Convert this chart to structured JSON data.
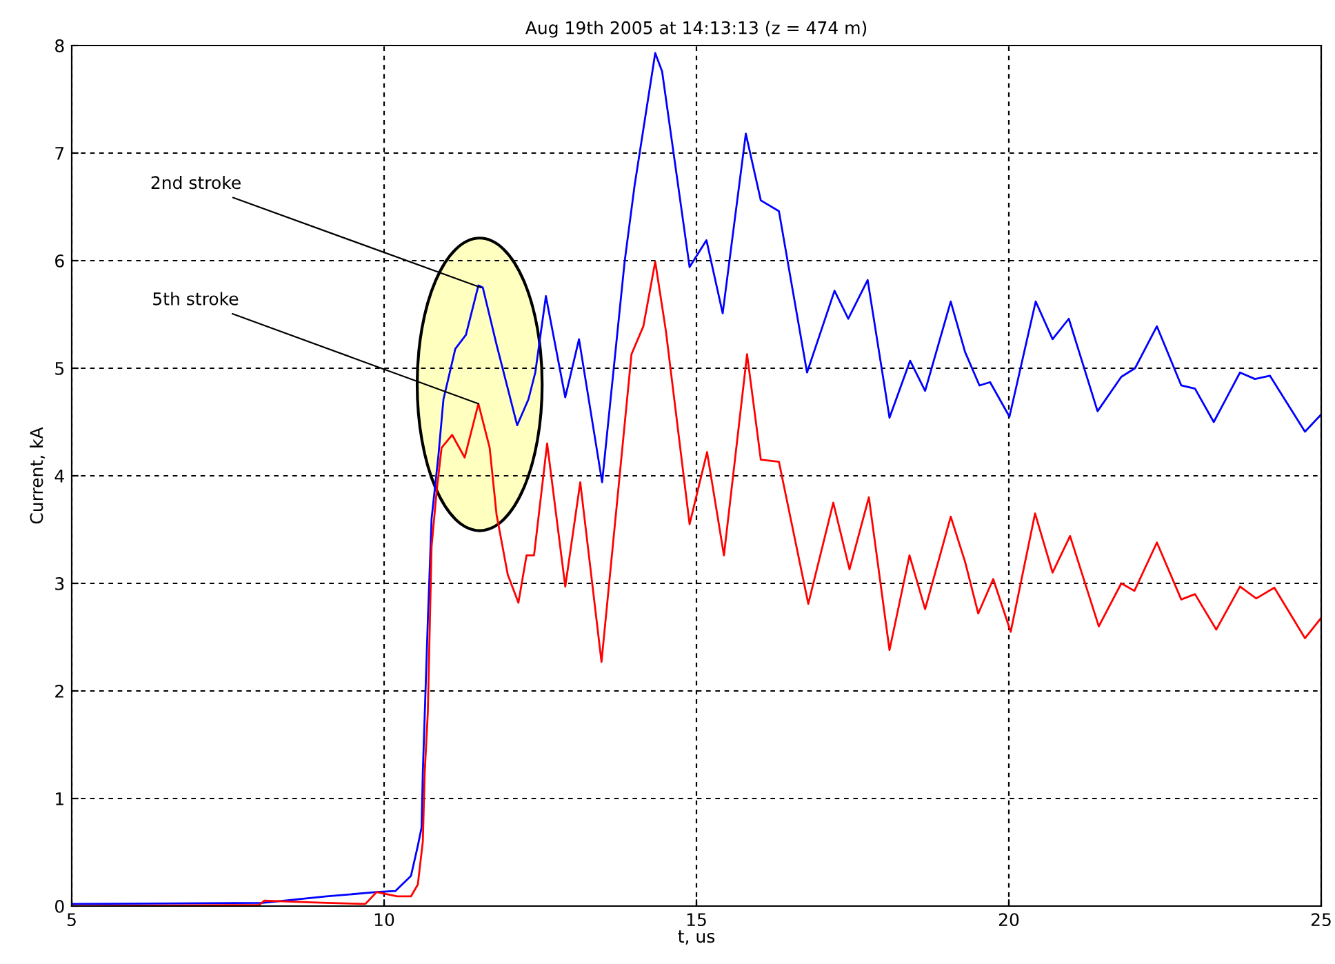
{
  "chart_data": {
    "type": "line",
    "title": "Aug 19th 2005 at 14:13:13 (z = 474 m)",
    "xlabel": "t, us",
    "ylabel": "Current, kA",
    "xlim": [
      5,
      25
    ],
    "xticks": [
      5,
      10,
      15,
      20,
      25
    ],
    "ylim": [
      0,
      8
    ],
    "yticks": [
      0,
      1,
      2,
      3,
      4,
      5,
      6,
      7,
      8
    ],
    "grid": true,
    "line_style": "solid",
    "series": [
      {
        "color": "#0000ff",
        "x": [
          5.0,
          8.05,
          9.08,
          9.88,
          10.18,
          10.43,
          10.54,
          10.6,
          10.62,
          10.7,
          10.76,
          10.87,
          10.95,
          11.14,
          11.31,
          11.51,
          11.58,
          11.8,
          12.13,
          12.31,
          12.42,
          12.59,
          12.9,
          13.12,
          13.49,
          13.85,
          14.01,
          14.34,
          14.45,
          14.89,
          15.16,
          15.42,
          15.79,
          16.03,
          16.32,
          16.77,
          17.21,
          17.43,
          17.74,
          18.09,
          18.42,
          18.66,
          19.07,
          19.3,
          19.53,
          19.7,
          20.01,
          20.43,
          20.7,
          20.96,
          21.42,
          21.8,
          22.02,
          22.37,
          22.76,
          22.98,
          23.28,
          23.7,
          23.94,
          24.18,
          24.74,
          25.0
        ],
        "values": [
          0.02,
          0.03,
          0.09,
          0.13,
          0.14,
          0.28,
          0.56,
          0.73,
          1.24,
          2.65,
          3.6,
          4.19,
          4.71,
          5.18,
          5.31,
          5.77,
          5.75,
          5.22,
          4.47,
          4.71,
          4.96,
          5.67,
          4.73,
          5.27,
          3.94,
          5.99,
          6.7,
          7.93,
          7.76,
          5.94,
          6.19,
          5.51,
          7.18,
          6.56,
          6.46,
          4.96,
          5.72,
          5.46,
          5.82,
          4.54,
          5.07,
          4.79,
          5.62,
          5.15,
          4.84,
          4.87,
          4.55,
          5.62,
          5.27,
          5.46,
          4.6,
          4.92,
          5.0,
          5.39,
          4.84,
          4.81,
          4.5,
          4.96,
          4.9,
          4.93,
          4.41,
          4.57
        ]
      },
      {
        "color": "#ff0000",
        "x": [
          5.0,
          8.0,
          8.08,
          9.08,
          9.7,
          9.88,
          9.97,
          10.21,
          10.43,
          10.54,
          10.62,
          10.65,
          10.7,
          10.76,
          10.84,
          10.92,
          11.09,
          11.29,
          11.51,
          11.69,
          11.8,
          11.98,
          12.15,
          12.28,
          12.4,
          12.61,
          12.9,
          13.14,
          13.48,
          13.96,
          14.15,
          14.34,
          14.51,
          14.89,
          15.17,
          15.44,
          15.81,
          16.03,
          16.32,
          16.79,
          17.19,
          17.45,
          17.76,
          18.09,
          18.41,
          18.66,
          19.07,
          19.3,
          19.51,
          19.75,
          20.03,
          20.42,
          20.7,
          20.98,
          21.44,
          21.8,
          22.01,
          22.37,
          22.76,
          22.98,
          23.32,
          23.7,
          23.96,
          24.25,
          24.74,
          25.0
        ],
        "values": [
          0.0,
          0.01,
          0.05,
          0.03,
          0.02,
          0.13,
          0.12,
          0.09,
          0.09,
          0.2,
          0.6,
          1.24,
          1.8,
          3.34,
          3.85,
          4.26,
          4.38,
          4.17,
          4.67,
          4.26,
          3.64,
          3.08,
          2.82,
          3.26,
          3.26,
          4.3,
          2.97,
          3.94,
          2.27,
          5.13,
          5.39,
          5.99,
          5.35,
          3.55,
          4.22,
          3.26,
          5.13,
          4.15,
          4.13,
          2.81,
          3.75,
          3.13,
          3.8,
          2.38,
          3.26,
          2.76,
          3.62,
          3.2,
          2.72,
          3.04,
          2.55,
          3.65,
          3.1,
          3.44,
          2.6,
          3.0,
          2.93,
          3.38,
          2.85,
          2.9,
          2.57,
          2.97,
          2.86,
          2.96,
          2.49,
          2.68
        ]
      }
    ],
    "annotations": [
      {
        "text": "2nd stroke",
        "x": 11.55,
        "y": 5.75
      },
      {
        "text": "5th stroke",
        "x": 11.51,
        "y": 4.67
      }
    ]
  }
}
